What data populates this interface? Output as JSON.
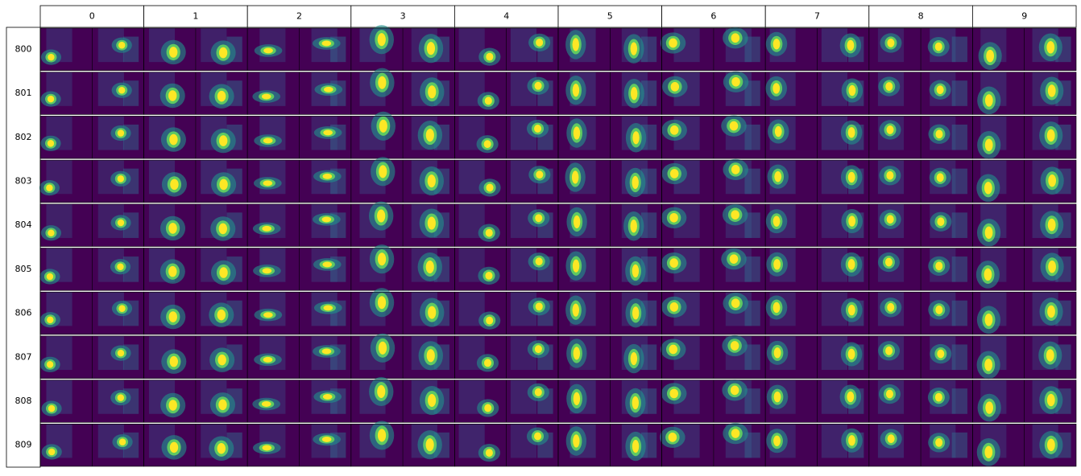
{
  "columns": [
    "0",
    "1",
    "2",
    "3",
    "4",
    "5",
    "6",
    "7",
    "8",
    "9"
  ],
  "rows": [
    "800",
    "801",
    "802",
    "803",
    "804",
    "805",
    "806",
    "807",
    "808",
    "809"
  ]
}
